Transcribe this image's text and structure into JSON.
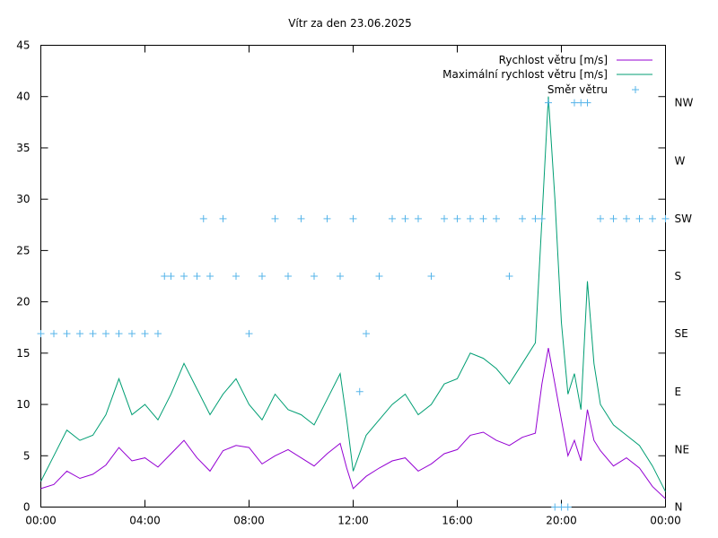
{
  "chart_data": {
    "type": "line",
    "title": "Vítr za den 23.06.2025",
    "xlabel": "",
    "ylabel": "",
    "x_range_hours": [
      0,
      24
    ],
    "ylim": [
      0,
      45
    ],
    "yticks": [
      0,
      5,
      10,
      15,
      20,
      25,
      30,
      35,
      40,
      45
    ],
    "xtick_hours": [
      0,
      4,
      8,
      12,
      16,
      20,
      24
    ],
    "xtick_labels": [
      "00:00",
      "04:00",
      "08:00",
      "12:00",
      "16:00",
      "20:00",
      "00:00"
    ],
    "y2_labels": [
      "N",
      "NE",
      "E",
      "SE",
      "S",
      "SW",
      "W",
      "NW"
    ],
    "y2_label_values": [
      0,
      5.6,
      11.25,
      16.9,
      22.5,
      28.1,
      33.75,
      39.4
    ],
    "legend_position": "top-right",
    "grid": false,
    "series": [
      {
        "name": "Rychlost větru [m/s]",
        "color": "#9400d3",
        "style": "line",
        "x_hours": [
          0,
          0.5,
          1,
          1.5,
          2,
          2.5,
          3,
          3.5,
          4,
          4.5,
          5,
          5.5,
          6,
          6.5,
          7,
          7.5,
          8,
          8.5,
          9,
          9.5,
          10,
          10.5,
          11,
          11.5,
          11.75,
          12,
          12.5,
          13,
          13.5,
          14,
          14.5,
          15,
          15.5,
          16,
          16.5,
          17,
          17.5,
          18,
          18.5,
          19,
          19.25,
          19.5,
          19.75,
          20,
          20.25,
          20.5,
          20.75,
          21,
          21.25,
          21.5,
          22,
          22.5,
          23,
          23.5,
          24
        ],
        "values": [
          1.8,
          2.2,
          3.5,
          2.8,
          3.2,
          4.1,
          5.8,
          4.5,
          4.8,
          3.9,
          5.2,
          6.5,
          4.8,
          3.5,
          5.5,
          6.0,
          5.8,
          4.2,
          5.0,
          5.6,
          4.8,
          4.0,
          5.2,
          6.2,
          3.8,
          1.8,
          3.0,
          3.8,
          4.5,
          4.8,
          3.5,
          4.2,
          5.2,
          5.6,
          7.0,
          7.3,
          6.5,
          6.0,
          6.8,
          7.2,
          12.0,
          15.5,
          12.0,
          8.5,
          5.0,
          6.5,
          4.5,
          9.5,
          6.5,
          5.5,
          4.0,
          4.8,
          3.8,
          2.0,
          0.8
        ]
      },
      {
        "name": "Maximální rychlost větru [m/s]",
        "color": "#009e73",
        "style": "line",
        "x_hours": [
          0,
          0.5,
          1,
          1.5,
          2,
          2.5,
          3,
          3.5,
          4,
          4.5,
          5,
          5.5,
          6,
          6.5,
          7,
          7.5,
          8,
          8.5,
          9,
          9.5,
          10,
          10.5,
          11,
          11.5,
          11.75,
          12,
          12.5,
          13,
          13.5,
          14,
          14.5,
          15,
          15.5,
          16,
          16.5,
          17,
          17.5,
          18,
          18.5,
          19,
          19.25,
          19.5,
          19.75,
          20,
          20.25,
          20.5,
          20.75,
          21,
          21.25,
          21.5,
          22,
          22.5,
          23,
          23.5,
          24
        ],
        "values": [
          2.5,
          5.0,
          7.5,
          6.5,
          7.0,
          9.0,
          12.5,
          9.0,
          10.0,
          8.5,
          11.0,
          14.0,
          11.5,
          9.0,
          11.0,
          12.5,
          10.0,
          8.5,
          11.0,
          9.5,
          9.0,
          8.0,
          10.5,
          13.0,
          8.5,
          3.5,
          7.0,
          8.5,
          10.0,
          11.0,
          9.0,
          10.0,
          12.0,
          12.5,
          15.0,
          14.5,
          13.5,
          12.0,
          14.0,
          16.0,
          28.0,
          40.0,
          30.0,
          18.0,
          11.0,
          13.0,
          9.5,
          22.0,
          14.0,
          10.0,
          8.0,
          7.0,
          6.0,
          4.0,
          1.5
        ]
      },
      {
        "name": "Směr větru",
        "color": "#56b4e9",
        "style": "points",
        "x_hours": [
          0,
          0.5,
          1,
          1.5,
          2,
          2.5,
          3,
          3.5,
          4,
          4.5,
          4.75,
          5,
          5.5,
          6,
          6.25,
          6.5,
          7,
          7.5,
          8,
          8.5,
          9,
          9.5,
          10,
          10.5,
          11,
          11.5,
          12,
          12.25,
          12.5,
          13,
          13.5,
          14,
          14.5,
          15,
          15.5,
          16,
          16.5,
          17,
          17.5,
          18,
          18.5,
          19,
          19.25,
          19.5,
          19.75,
          20,
          20.25,
          20.5,
          20.75,
          21,
          21.5,
          22,
          22.5,
          23,
          23.5,
          24
        ],
        "values": [
          16.9,
          16.9,
          16.9,
          16.9,
          16.9,
          16.9,
          16.9,
          16.9,
          16.9,
          16.9,
          22.5,
          22.5,
          22.5,
          22.5,
          28.1,
          22.5,
          28.1,
          22.5,
          16.9,
          22.5,
          28.1,
          22.5,
          28.1,
          22.5,
          28.1,
          22.5,
          28.1,
          11.25,
          16.9,
          22.5,
          28.1,
          28.1,
          28.1,
          22.5,
          28.1,
          28.1,
          28.1,
          28.1,
          28.1,
          22.5,
          28.1,
          28.1,
          28.1,
          39.4,
          0,
          0,
          0,
          39.4,
          39.4,
          39.4,
          28.1,
          28.1,
          28.1,
          28.1,
          28.1,
          28.1
        ]
      }
    ]
  }
}
